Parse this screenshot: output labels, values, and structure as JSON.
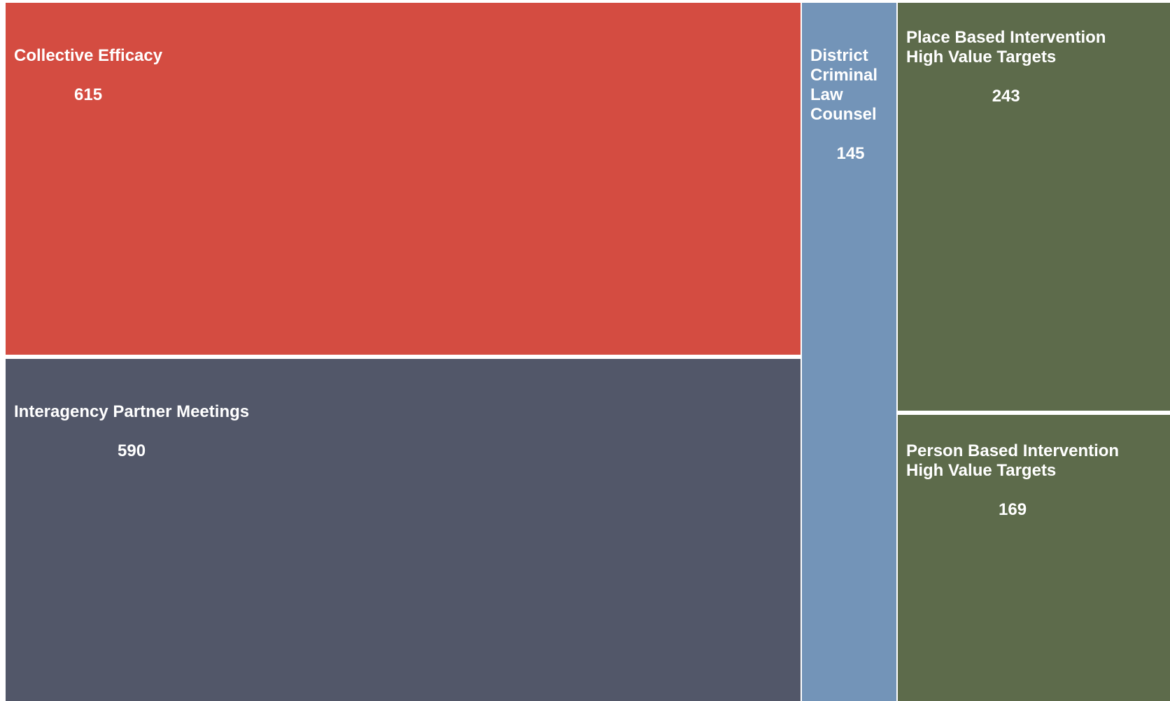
{
  "chart_data": {
    "type": "treemap",
    "title": "",
    "items": [
      {
        "label": "Collective Efficacy",
        "value": 615,
        "color": "#d44c41"
      },
      {
        "label": "Interagency Partner Meetings",
        "value": 590,
        "color": "#525769"
      },
      {
        "label": "District Criminal Law Counsel",
        "value": 145,
        "color": "#7394b8"
      },
      {
        "label": "Place Based Intervention High Value Targets",
        "value": 243,
        "color": "#5d6b4b"
      },
      {
        "label": "Person Based Intervention High Value Targets",
        "value": 169,
        "color": "#5d6b4b"
      }
    ]
  }
}
